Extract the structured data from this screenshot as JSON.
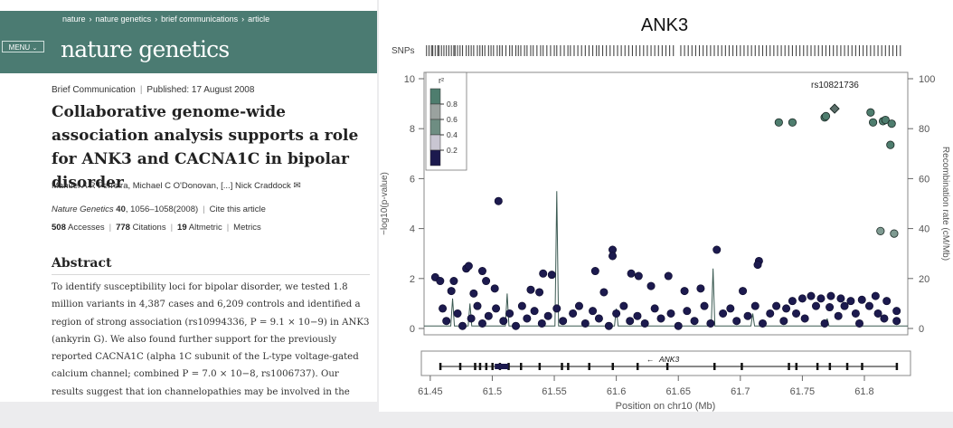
{
  "article": {
    "breadcrumb": [
      "nature",
      "nature genetics",
      "brief communications",
      "article"
    ],
    "menu_label": "MENU",
    "journal_name": "nature genetics",
    "article_type": "Brief Communication",
    "published": "Published: 17 August 2008",
    "title": "Collaborative genome-wide association analysis supports a role for ANK3 and CACNA1C in bipolar disorder",
    "authors": "Manuel A R Ferreira, Michael C O'Donovan, [...] Nick Craddock",
    "journal_italic": "Nature Genetics",
    "volume": "40",
    "pages": ", 1056–1058(2008)",
    "cite_link": "Cite this article",
    "accesses_count": "508",
    "accesses_label": "Accesses",
    "citations_count": "778",
    "citations_label": "Citations",
    "altmetric_count": "19",
    "altmetric_label": "Altmetric",
    "metrics_link": "Metrics",
    "abstract_heading": "Abstract",
    "abstract_text": "To identify susceptibility loci for bipolar disorder, we tested 1.8 million variants in 4,387 cases and 6,209 controls and identified a region of strong association (rs10994336, P = 9.1 × 10−9) in ANK3 (ankyrin G). We also found further support for the previously reported CACNA1C (alpha 1C subunit of the L-type voltage-gated calcium channel; combined P = 7.0 × 10−8, rs1006737). Our results suggest that ion channelopathies may be involved in the pathogenesis of bipolar disorder."
  },
  "chart_data": {
    "type": "scatter",
    "title": "ANK3",
    "snps_label": "SNPs",
    "xlabel": "Position on chr10 (Mb)",
    "ylabel": "−log10(p-value)",
    "y2label": "Recombination rate (cM/Mb)",
    "xlim": [
      61.445,
      61.835
    ],
    "ylim": [
      0,
      10
    ],
    "y2lim": [
      0,
      100
    ],
    "x_ticks": [
      "61.45",
      "61.5",
      "61.55",
      "61.6",
      "61.65",
      "61.7",
      "61.75",
      "61.8"
    ],
    "x_tick_values": [
      61.45,
      61.5,
      61.55,
      61.6,
      61.65,
      61.7,
      61.75,
      61.8
    ],
    "y_ticks": [
      "0",
      "2",
      "4",
      "6",
      "8",
      "10"
    ],
    "y_tick_values": [
      0,
      2,
      4,
      6,
      8,
      10
    ],
    "y2_ticks": [
      "0",
      "20",
      "40",
      "60",
      "80",
      "100"
    ],
    "y2_tick_values": [
      0,
      20,
      40,
      60,
      80,
      100
    ],
    "legend_title": "r²",
    "legend_labels": [
      "0.8",
      "0.6",
      "0.4",
      "0.2"
    ],
    "legend_values": [
      0.8,
      0.6,
      0.4,
      0.2
    ],
    "legend_colors": [
      "#4e7d6e",
      "#9aa29f",
      "#6e8d82",
      "#c9c6d2",
      "#1c1a4e"
    ],
    "legend_placement": "top-left",
    "lead_snp": {
      "name": "rs10821736",
      "x": 61.776,
      "y": 8.8
    },
    "gene_label": "ANK3",
    "gene_direction": "minus",
    "colors": {
      "low_ld": "#1c1a4e",
      "high_ld": "#4e7d6e",
      "mid_ld": "#7f9b92",
      "recomb_line": "#3b5a52"
    },
    "high_ld_points": [
      {
        "x": 61.731,
        "y": 8.25
      },
      {
        "x": 61.742,
        "y": 8.25
      },
      {
        "x": 61.768,
        "y": 8.45
      },
      {
        "x": 61.769,
        "y": 8.5
      },
      {
        "x": 61.805,
        "y": 8.65
      },
      {
        "x": 61.807,
        "y": 8.25
      },
      {
        "x": 61.815,
        "y": 8.3
      },
      {
        "x": 61.817,
        "y": 8.35
      },
      {
        "x": 61.822,
        "y": 8.2
      },
      {
        "x": 61.821,
        "y": 7.35
      },
      {
        "x": 61.813,
        "y": 3.9
      },
      {
        "x": 61.824,
        "y": 3.8
      }
    ],
    "low_ld_points": [
      {
        "x": 61.505,
        "y": 5.1
      },
      {
        "x": 61.597,
        "y": 3.15
      },
      {
        "x": 61.681,
        "y": 3.15
      },
      {
        "x": 61.597,
        "y": 2.9
      },
      {
        "x": 61.548,
        "y": 2.15
      },
      {
        "x": 61.541,
        "y": 2.2
      },
      {
        "x": 61.583,
        "y": 2.3
      },
      {
        "x": 61.612,
        "y": 2.2
      },
      {
        "x": 61.618,
        "y": 2.1
      },
      {
        "x": 61.642,
        "y": 2.1
      },
      {
        "x": 61.715,
        "y": 2.7
      },
      {
        "x": 61.714,
        "y": 2.55
      },
      {
        "x": 61.479,
        "y": 2.4
      },
      {
        "x": 61.481,
        "y": 2.5
      },
      {
        "x": 61.492,
        "y": 2.3
      },
      {
        "x": 61.454,
        "y": 2.05
      },
      {
        "x": 61.458,
        "y": 1.9
      },
      {
        "x": 61.469,
        "y": 1.9
      },
      {
        "x": 61.495,
        "y": 1.9
      },
      {
        "x": 61.502,
        "y": 1.6
      },
      {
        "x": 61.531,
        "y": 1.55
      },
      {
        "x": 61.538,
        "y": 1.45
      },
      {
        "x": 61.59,
        "y": 1.45
      },
      {
        "x": 61.628,
        "y": 1.7
      },
      {
        "x": 61.655,
        "y": 1.5
      },
      {
        "x": 61.668,
        "y": 1.6
      },
      {
        "x": 61.702,
        "y": 1.5
      },
      {
        "x": 61.485,
        "y": 1.4
      },
      {
        "x": 61.467,
        "y": 1.5
      },
      {
        "x": 61.742,
        "y": 1.1
      },
      {
        "x": 61.75,
        "y": 1.2
      },
      {
        "x": 61.757,
        "y": 1.3
      },
      {
        "x": 61.765,
        "y": 1.2
      },
      {
        "x": 61.773,
        "y": 1.3
      },
      {
        "x": 61.781,
        "y": 1.2
      },
      {
        "x": 61.789,
        "y": 1.1
      },
      {
        "x": 61.798,
        "y": 1.15
      },
      {
        "x": 61.809,
        "y": 1.3
      },
      {
        "x": 61.818,
        "y": 1.1
      },
      {
        "x": 61.729,
        "y": 0.9
      },
      {
        "x": 61.737,
        "y": 0.8
      },
      {
        "x": 61.745,
        "y": 0.6
      },
      {
        "x": 61.761,
        "y": 0.9
      },
      {
        "x": 61.772,
        "y": 0.85
      },
      {
        "x": 61.784,
        "y": 0.9
      },
      {
        "x": 61.793,
        "y": 0.6
      },
      {
        "x": 61.804,
        "y": 0.9
      },
      {
        "x": 61.811,
        "y": 0.6
      },
      {
        "x": 61.826,
        "y": 0.7
      },
      {
        "x": 61.826,
        "y": 0.3
      },
      {
        "x": 61.46,
        "y": 0.8
      },
      {
        "x": 61.463,
        "y": 0.3
      },
      {
        "x": 61.472,
        "y": 0.6
      },
      {
        "x": 61.476,
        "y": 0.1
      },
      {
        "x": 61.483,
        "y": 0.4
      },
      {
        "x": 61.488,
        "y": 0.9
      },
      {
        "x": 61.492,
        "y": 0.2
      },
      {
        "x": 61.497,
        "y": 0.5
      },
      {
        "x": 61.503,
        "y": 0.8
      },
      {
        "x": 61.509,
        "y": 0.3
      },
      {
        "x": 61.514,
        "y": 0.6
      },
      {
        "x": 61.519,
        "y": 0.1
      },
      {
        "x": 61.524,
        "y": 0.9
      },
      {
        "x": 61.528,
        "y": 0.4
      },
      {
        "x": 61.534,
        "y": 0.7
      },
      {
        "x": 61.54,
        "y": 0.2
      },
      {
        "x": 61.545,
        "y": 0.5
      },
      {
        "x": 61.552,
        "y": 0.8
      },
      {
        "x": 61.557,
        "y": 0.3
      },
      {
        "x": 61.565,
        "y": 0.6
      },
      {
        "x": 61.57,
        "y": 0.9
      },
      {
        "x": 61.575,
        "y": 0.2
      },
      {
        "x": 61.581,
        "y": 0.7
      },
      {
        "x": 61.586,
        "y": 0.4
      },
      {
        "x": 61.594,
        "y": 0.1
      },
      {
        "x": 61.6,
        "y": 0.6
      },
      {
        "x": 61.606,
        "y": 0.9
      },
      {
        "x": 61.611,
        "y": 0.3
      },
      {
        "x": 61.617,
        "y": 0.5
      },
      {
        "x": 61.623,
        "y": 0.2
      },
      {
        "x": 61.631,
        "y": 0.8
      },
      {
        "x": 61.636,
        "y": 0.4
      },
      {
        "x": 61.644,
        "y": 0.6
      },
      {
        "x": 61.65,
        "y": 0.1
      },
      {
        "x": 61.657,
        "y": 0.7
      },
      {
        "x": 61.663,
        "y": 0.3
      },
      {
        "x": 61.671,
        "y": 0.9
      },
      {
        "x": 61.676,
        "y": 0.2
      },
      {
        "x": 61.686,
        "y": 0.6
      },
      {
        "x": 61.692,
        "y": 0.8
      },
      {
        "x": 61.697,
        "y": 0.3
      },
      {
        "x": 61.706,
        "y": 0.5
      },
      {
        "x": 61.712,
        "y": 0.9
      },
      {
        "x": 61.718,
        "y": 0.2
      },
      {
        "x": 61.724,
        "y": 0.6
      },
      {
        "x": 61.735,
        "y": 0.3
      },
      {
        "x": 61.752,
        "y": 0.4
      },
      {
        "x": 61.768,
        "y": 0.2
      },
      {
        "x": 61.779,
        "y": 0.5
      },
      {
        "x": 61.796,
        "y": 0.2
      },
      {
        "x": 61.816,
        "y": 0.4
      }
    ],
    "recomb_peaks": [
      {
        "x": 61.468,
        "y": 12
      },
      {
        "x": 61.482,
        "y": 10
      },
      {
        "x": 61.512,
        "y": 14
      },
      {
        "x": 61.552,
        "y": 55
      },
      {
        "x": 61.6,
        "y": 8
      },
      {
        "x": 61.678,
        "y": 24
      },
      {
        "x": 61.71,
        "y": 6
      },
      {
        "x": 61.77,
        "y": 4
      }
    ],
    "gene_exons": [
      61.458,
      61.474,
      61.486,
      61.49,
      61.495,
      61.5,
      61.506,
      61.513,
      61.523,
      61.538,
      61.556,
      61.561,
      61.578,
      61.597,
      61.617,
      61.641,
      61.679,
      61.701,
      61.739,
      61.745,
      61.762,
      61.772,
      61.786,
      61.798,
      61.826
    ],
    "snp_positions": [
      61.447,
      61.449,
      61.451,
      61.452,
      61.454,
      61.456,
      61.457,
      61.459,
      61.461,
      61.463,
      61.465,
      61.467,
      61.469,
      61.47,
      61.472,
      61.474,
      61.476,
      61.479,
      61.481,
      61.483,
      61.485,
      61.488,
      61.49,
      61.492,
      61.494,
      61.497,
      61.499,
      61.501,
      61.504,
      61.506,
      61.508,
      61.511,
      61.514,
      61.516,
      61.519,
      61.521,
      61.523,
      61.526,
      61.528,
      61.531,
      61.533,
      61.536,
      61.539,
      61.541,
      61.544,
      61.547,
      61.55,
      61.552,
      61.555,
      61.558,
      61.561,
      61.563,
      61.566,
      61.569,
      61.572,
      61.575,
      61.578,
      61.581,
      61.584,
      61.586,
      61.589,
      61.592,
      61.595,
      61.598,
      61.601,
      61.604,
      61.607,
      61.61,
      61.613,
      61.616,
      61.619,
      61.622,
      61.625,
      61.628,
      61.631,
      61.634,
      61.637,
      61.64,
      61.643,
      61.646,
      61.652,
      61.655,
      61.658,
      61.661,
      61.664,
      61.667,
      61.67,
      61.673,
      61.676,
      61.679,
      61.682,
      61.685,
      61.688,
      61.691,
      61.694,
      61.697,
      61.7,
      61.703,
      61.706,
      61.709,
      61.712,
      61.715,
      61.718,
      61.721,
      61.724,
      61.727,
      61.73,
      61.733,
      61.736,
      61.739,
      61.742,
      61.745,
      61.748,
      61.751,
      61.754,
      61.757,
      61.76,
      61.763,
      61.766,
      61.769,
      61.772,
      61.775,
      61.778,
      61.781,
      61.784,
      61.787,
      61.79,
      61.793,
      61.796,
      61.799,
      61.802,
      61.805,
      61.808,
      61.811,
      61.814,
      61.817,
      61.82,
      61.823,
      61.826,
      61.829
    ]
  }
}
